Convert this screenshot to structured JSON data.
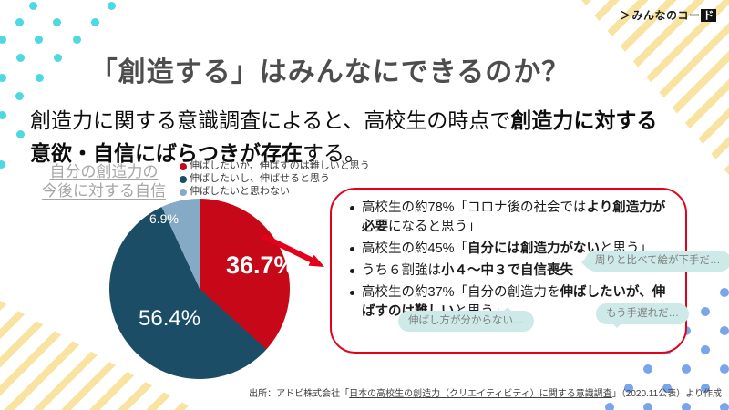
{
  "logo": {
    "mark": "＞",
    "text": "みんなのコー",
    "boxed_char": "ド"
  },
  "title": "「創造する」はみんなにできるのか？",
  "subtitle": {
    "pre": "創造力に関する意識調査によると、高校生の時点で",
    "bold_line1": "創造力に対する",
    "bold_line2": "意欲・自信にばらつきが存在",
    "post": "する。"
  },
  "chart": {
    "heading_line1": "自分の創造力の",
    "heading_line2": "今後に対する自信"
  },
  "chart_data": {
    "type": "pie",
    "title": "自分の創造力の今後に対する自信",
    "start_angle_deg": 0,
    "direction": "clockwise",
    "slices": [
      {
        "label": "伸ばしたいが、伸ばすのは難しいと思う",
        "value": 36.7,
        "display": "36.7%",
        "color": "#c60818"
      },
      {
        "label": "伸ばしたいし、伸ばせると思う",
        "value": 56.4,
        "display": "56.4%",
        "color": "#1b4e66"
      },
      {
        "label": "伸ばしたいと思わない",
        "value": 6.9,
        "display": "6.9%",
        "color": "#85aac5"
      }
    ],
    "legend_position": "top"
  },
  "callout": {
    "bullets": [
      {
        "pre": "高校生の約78%「コロナ後の社会では",
        "bold": "より創造力が必要",
        "post": "になると思う」"
      },
      {
        "pre": "高校生の約45%「",
        "bold": "自分には創造力がない",
        "post": "と思う」"
      },
      {
        "pre": "うち６割強は",
        "bold": "小４～中３で自信喪失",
        "post": ""
      },
      {
        "pre": "高校生の約37%「自分の創造力を",
        "bold": "伸ばしたいが、伸ばすのは難しい",
        "post": "と思う」"
      }
    ]
  },
  "bubbles": {
    "b1": "周りと比べて絵が下手だ…",
    "b2": "伸ばし方が分からない…",
    "b3": "もう手遅れだ…"
  },
  "source": {
    "pre": "出所：アドビ株式会社「",
    "link": "日本の高校生の創造力（クリエイティビティ）に関する意識調査",
    "post": "」（2020.11公表）より作成"
  },
  "colors": {
    "accent_red": "#e2001a",
    "pie_red": "#c60818",
    "pie_dark_blue": "#1b4e66",
    "pie_light_blue": "#85aac5",
    "bubble_bg": "#cdeae8",
    "stripe_yellow": "#f9e3a1",
    "dot_cyan": "#4ed8e2",
    "dot_blue": "#79a5e9",
    "title_gray": "#4d4d4d",
    "heading_gray": "#a6a6a6"
  }
}
